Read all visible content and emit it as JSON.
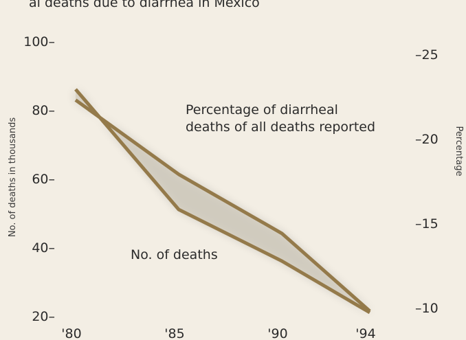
{
  "chart_data": {
    "type": "line",
    "title_fragment": "al deaths due to diarrhea in Mexico",
    "x": [
      "'80",
      "'85",
      "'90",
      "'94"
    ],
    "ylabel": "No. of deaths in thousands",
    "ylabel_right": "Percentage",
    "ylim": [
      17,
      105
    ],
    "ylim_right": [
      8.9,
      26.8
    ],
    "left_ticks": [
      "20–",
      "40–",
      "60–",
      "80–",
      "100–"
    ],
    "right_ticks": [
      "–10",
      "–15",
      "–20",
      "–25"
    ],
    "series": [
      {
        "name": "No. of deaths",
        "axis": "left",
        "values": [
          86,
          51,
          36,
          21
        ],
        "color": "#947a4a"
      },
      {
        "name": "Percentage of diarrheal deaths of all deaths reported",
        "axis": "right",
        "values": [
          22.3,
          17.9,
          14.4,
          9.8
        ],
        "color": "#947a4a"
      }
    ],
    "annotations": {
      "percent_line1": "Percentage of diarrheal",
      "percent_line2": "deaths of all deaths reported",
      "deaths": "No. of deaths"
    },
    "grid": false,
    "legend": "none"
  }
}
